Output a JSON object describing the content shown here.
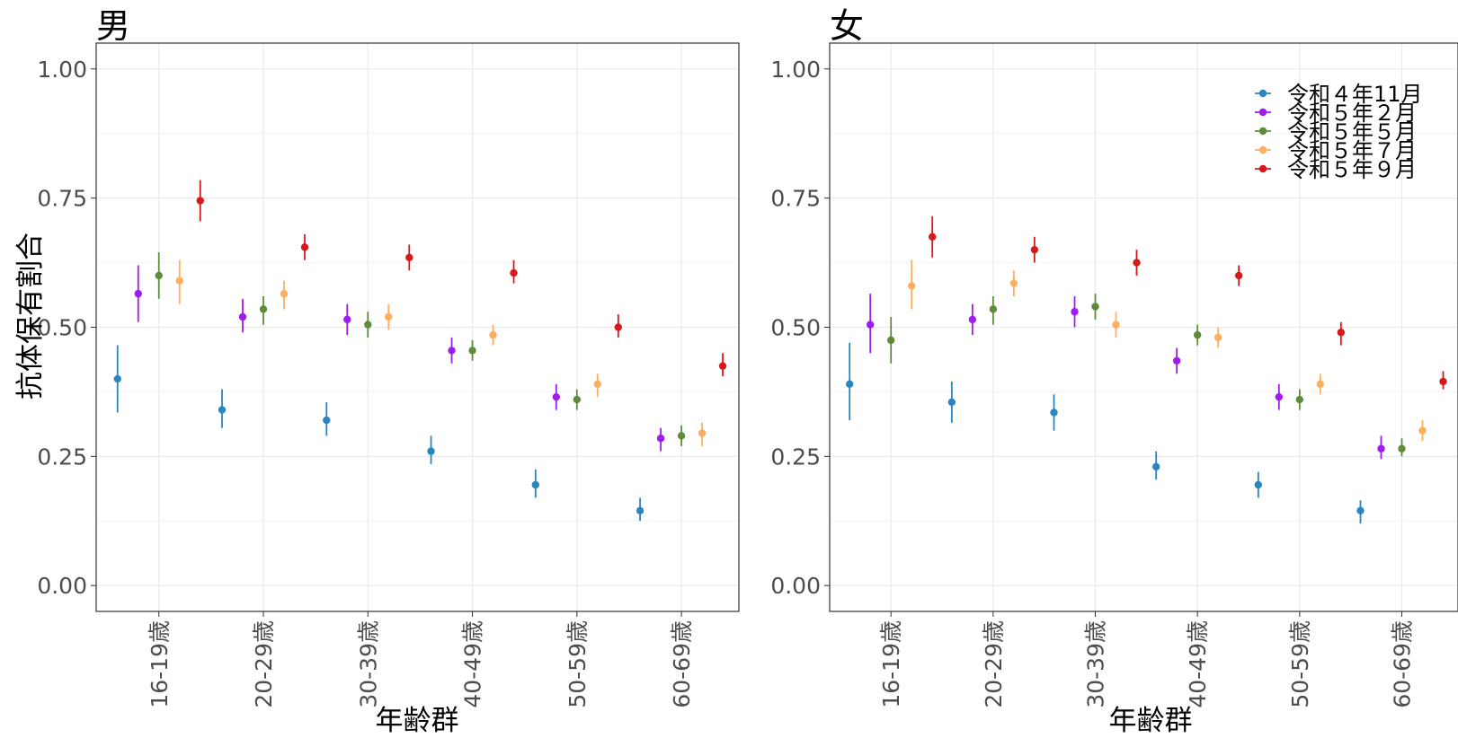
{
  "chart_data": {
    "type": "scatter",
    "ylabel": "抗体保有割合",
    "xlabel": "年齢群",
    "categories": [
      "16-19歳",
      "20-29歳",
      "30-39歳",
      "40-49歳",
      "50-59歳",
      "60-69歳"
    ],
    "ylim": [
      -0.05,
      1.05
    ],
    "yticks": [
      0.0,
      0.25,
      0.5,
      0.75,
      1.0
    ],
    "ytick_labels": [
      "0.00",
      "0.25",
      "0.50",
      "0.75",
      "1.00"
    ],
    "grid": true,
    "legend_position": "top-right",
    "series_info": [
      {
        "name": "令和４年11月",
        "color": "#2b86c0"
      },
      {
        "name": "令和５年２月",
        "color": "#9e1cf0"
      },
      {
        "name": "令和５年５月",
        "color": "#5e8c3a"
      },
      {
        "name": "令和５年７月",
        "color": "#fdae61"
      },
      {
        "name": "令和５年９月",
        "color": "#d7191c"
      }
    ],
    "panels": [
      {
        "title": "男",
        "series": [
          {
            "name": "令和４年11月",
            "values": [
              0.4,
              0.34,
              0.32,
              0.26,
              0.195,
              0.145
            ],
            "lower": [
              0.335,
              0.305,
              0.29,
              0.235,
              0.17,
              0.125
            ],
            "upper": [
              0.465,
              0.38,
              0.355,
              0.29,
              0.225,
              0.17
            ]
          },
          {
            "name": "令和５年２月",
            "values": [
              0.565,
              0.52,
              0.515,
              0.455,
              0.365,
              0.285
            ],
            "lower": [
              0.51,
              0.49,
              0.485,
              0.43,
              0.34,
              0.26
            ],
            "upper": [
              0.62,
              0.555,
              0.545,
              0.48,
              0.39,
              0.305
            ]
          },
          {
            "name": "令和５年５月",
            "values": [
              0.6,
              0.535,
              0.505,
              0.455,
              0.36,
              0.29
            ],
            "lower": [
              0.555,
              0.505,
              0.48,
              0.435,
              0.34,
              0.27
            ],
            "upper": [
              0.645,
              0.56,
              0.53,
              0.475,
              0.38,
              0.31
            ]
          },
          {
            "name": "令和５年７月",
            "values": [
              0.59,
              0.565,
              0.52,
              0.485,
              0.39,
              0.295
            ],
            "lower": [
              0.545,
              0.535,
              0.495,
              0.465,
              0.365,
              0.27
            ],
            "upper": [
              0.63,
              0.59,
              0.545,
              0.505,
              0.41,
              0.315
            ]
          },
          {
            "name": "令和５年９月",
            "values": [
              0.745,
              0.655,
              0.635,
              0.605,
              0.5,
              0.425
            ],
            "lower": [
              0.705,
              0.63,
              0.61,
              0.585,
              0.48,
              0.405
            ],
            "upper": [
              0.785,
              0.68,
              0.66,
              0.63,
              0.525,
              0.45
            ]
          }
        ]
      },
      {
        "title": "女",
        "series": [
          {
            "name": "令和４年11月",
            "values": [
              0.39,
              0.355,
              0.335,
              0.23,
              0.195,
              0.145
            ],
            "lower": [
              0.32,
              0.315,
              0.3,
              0.205,
              0.17,
              0.12
            ],
            "upper": [
              0.47,
              0.395,
              0.37,
              0.26,
              0.22,
              0.165
            ]
          },
          {
            "name": "令和５年２月",
            "values": [
              0.505,
              0.515,
              0.53,
              0.435,
              0.365,
              0.265
            ],
            "lower": [
              0.45,
              0.485,
              0.5,
              0.41,
              0.34,
              0.245
            ],
            "upper": [
              0.565,
              0.545,
              0.56,
              0.46,
              0.39,
              0.29
            ]
          },
          {
            "name": "令和５年５月",
            "values": [
              0.475,
              0.535,
              0.54,
              0.485,
              0.36,
              0.265
            ],
            "lower": [
              0.43,
              0.505,
              0.515,
              0.465,
              0.34,
              0.25
            ],
            "upper": [
              0.52,
              0.56,
              0.565,
              0.505,
              0.38,
              0.285
            ]
          },
          {
            "name": "令和５年７月",
            "values": [
              0.58,
              0.585,
              0.505,
              0.48,
              0.39,
              0.3
            ],
            "lower": [
              0.535,
              0.56,
              0.48,
              0.46,
              0.37,
              0.28
            ],
            "upper": [
              0.63,
              0.61,
              0.53,
              0.5,
              0.41,
              0.32
            ]
          },
          {
            "name": "令和５年９月",
            "values": [
              0.675,
              0.65,
              0.625,
              0.6,
              0.49,
              0.395
            ],
            "lower": [
              0.635,
              0.625,
              0.6,
              0.58,
              0.465,
              0.38
            ],
            "upper": [
              0.715,
              0.675,
              0.65,
              0.62,
              0.51,
              0.415
            ]
          }
        ]
      }
    ]
  }
}
